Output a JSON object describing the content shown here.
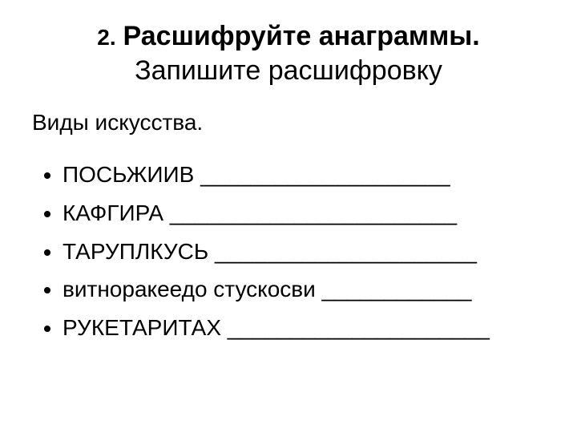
{
  "title": {
    "number": "2.",
    "bold": "Расшифруйте анаграммы.",
    "normal": "Запишите расшифровку"
  },
  "subhead": "Виды искусства.",
  "items": [
    "ПОСЬЖИИВ ____________________",
    "КАФГИРА _______________________",
    "ТАРУПЛКУСЬ _____________________",
    "витноракеедо стускосви ____________",
    "РУКЕТАРИТАХ _____________________"
  ]
}
